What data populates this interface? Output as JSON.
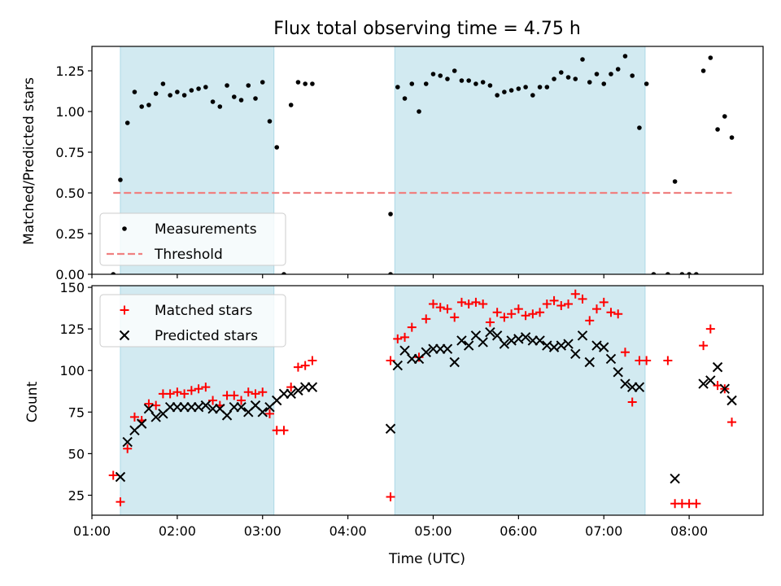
{
  "chart_data": [
    {
      "type": "scatter",
      "title": "Flux total observing time = 4.75 h",
      "xlabel": "",
      "ylabel": "Matched/Predicted stars",
      "x_unit": "UTC",
      "xlim": [
        "01:00",
        "08:52"
      ],
      "ylim": [
        0,
        1.4
      ],
      "yticks": [
        "0.00",
        "0.25",
        "0.50",
        "0.75",
        "1.00",
        "1.25"
      ],
      "legend_position": "lower-left",
      "shaded_intervals": [
        [
          "01:20",
          "03:08"
        ],
        [
          "04:33",
          "07:29"
        ]
      ],
      "shade_color": "#add8e6",
      "series": [
        {
          "name": "Measurements",
          "marker": "dot",
          "color": "#000000",
          "points": [
            [
              "01:15",
              0.0
            ],
            [
              "01:20",
              0.58
            ],
            [
              "01:25",
              0.93
            ],
            [
              "01:30",
              1.12
            ],
            [
              "01:35",
              1.03
            ],
            [
              "01:40",
              1.04
            ],
            [
              "01:45",
              1.11
            ],
            [
              "01:50",
              1.17
            ],
            [
              "01:55",
              1.1
            ],
            [
              "02:00",
              1.12
            ],
            [
              "02:05",
              1.1
            ],
            [
              "02:10",
              1.13
            ],
            [
              "02:15",
              1.14
            ],
            [
              "02:20",
              1.15
            ],
            [
              "02:25",
              1.06
            ],
            [
              "02:30",
              1.03
            ],
            [
              "02:35",
              1.16
            ],
            [
              "02:40",
              1.09
            ],
            [
              "02:45",
              1.07
            ],
            [
              "02:50",
              1.16
            ],
            [
              "02:55",
              1.08
            ],
            [
              "03:00",
              1.18
            ],
            [
              "03:05",
              0.94
            ],
            [
              "03:10",
              0.78
            ],
            [
              "03:15",
              0.0
            ],
            [
              "03:20",
              1.04
            ],
            [
              "03:25",
              1.18
            ],
            [
              "03:30",
              1.17
            ],
            [
              "03:35",
              1.17
            ],
            [
              "04:30",
              0.37
            ],
            [
              "04:30",
              0.0
            ],
            [
              "04:35",
              1.15
            ],
            [
              "04:40",
              1.08
            ],
            [
              "04:45",
              1.17
            ],
            [
              "04:50",
              1.0
            ],
            [
              "04:55",
              1.17
            ],
            [
              "05:00",
              1.23
            ],
            [
              "05:05",
              1.22
            ],
            [
              "05:10",
              1.2
            ],
            [
              "05:15",
              1.25
            ],
            [
              "05:20",
              1.19
            ],
            [
              "05:25",
              1.19
            ],
            [
              "05:30",
              1.17
            ],
            [
              "05:35",
              1.18
            ],
            [
              "05:40",
              1.16
            ],
            [
              "05:45",
              1.1
            ],
            [
              "05:50",
              1.12
            ],
            [
              "05:55",
              1.13
            ],
            [
              "06:00",
              1.14
            ],
            [
              "06:05",
              1.15
            ],
            [
              "06:10",
              1.1
            ],
            [
              "06:15",
              1.15
            ],
            [
              "06:20",
              1.15
            ],
            [
              "06:25",
              1.2
            ],
            [
              "06:30",
              1.24
            ],
            [
              "06:35",
              1.21
            ],
            [
              "06:40",
              1.2
            ],
            [
              "06:45",
              1.32
            ],
            [
              "06:50",
              1.18
            ],
            [
              "06:55",
              1.23
            ],
            [
              "07:00",
              1.17
            ],
            [
              "07:05",
              1.23
            ],
            [
              "07:10",
              1.26
            ],
            [
              "07:15",
              1.34
            ],
            [
              "07:20",
              1.22
            ],
            [
              "07:25",
              0.9
            ],
            [
              "07:30",
              1.17
            ],
            [
              "07:35",
              0.0
            ],
            [
              "07:45",
              0.0
            ],
            [
              "07:50",
              0.57
            ],
            [
              "07:55",
              0.0
            ],
            [
              "08:00",
              0.0
            ],
            [
              "08:05",
              0.0
            ],
            [
              "08:10",
              1.25
            ],
            [
              "08:15",
              1.33
            ],
            [
              "08:20",
              0.89
            ],
            [
              "08:25",
              0.97
            ],
            [
              "08:30",
              0.84
            ]
          ]
        },
        {
          "name": "Threshold",
          "marker": "dashed-line",
          "color": "#f08080",
          "points": [
            [
              "01:15",
              0.5
            ],
            [
              "08:30",
              0.5
            ]
          ]
        }
      ]
    },
    {
      "type": "scatter",
      "title": "",
      "xlabel": "Time (UTC)",
      "ylabel": "Count",
      "xlim": [
        "01:00",
        "08:52"
      ],
      "xticks": [
        "01:00",
        "02:00",
        "03:00",
        "04:00",
        "05:00",
        "06:00",
        "07:00",
        "08:00"
      ],
      "ylim": [
        13,
        151
      ],
      "yticks": [
        "25",
        "50",
        "75",
        "100",
        "125",
        "150"
      ],
      "legend_position": "upper-left",
      "shaded_intervals": [
        [
          "01:20",
          "03:08"
        ],
        [
          "04:33",
          "07:29"
        ]
      ],
      "shade_color": "#add8e6",
      "series": [
        {
          "name": "Matched stars",
          "marker": "plus",
          "color": "#ff0000",
          "points": [
            [
              "01:15",
              37
            ],
            [
              "01:20",
              21
            ],
            [
              "01:25",
              53
            ],
            [
              "01:30",
              72
            ],
            [
              "01:35",
              70
            ],
            [
              "01:40",
              80
            ],
            [
              "01:45",
              79
            ],
            [
              "01:50",
              86
            ],
            [
              "01:55",
              86
            ],
            [
              "02:00",
              87
            ],
            [
              "02:05",
              86
            ],
            [
              "02:10",
              88
            ],
            [
              "02:15",
              89
            ],
            [
              "02:20",
              90
            ],
            [
              "02:25",
              82
            ],
            [
              "02:30",
              79
            ],
            [
              "02:35",
              85
            ],
            [
              "02:40",
              85
            ],
            [
              "02:45",
              82
            ],
            [
              "02:50",
              87
            ],
            [
              "02:55",
              86
            ],
            [
              "03:00",
              87
            ],
            [
              "03:05",
              74
            ],
            [
              "03:10",
              64
            ],
            [
              "03:15",
              64
            ],
            [
              "03:20",
              90
            ],
            [
              "03:25",
              102
            ],
            [
              "03:30",
              103
            ],
            [
              "03:35",
              106
            ],
            [
              "04:30",
              106
            ],
            [
              "04:30",
              24
            ],
            [
              "04:35",
              119
            ],
            [
              "04:40",
              120
            ],
            [
              "04:45",
              126
            ],
            [
              "04:50",
              108
            ],
            [
              "04:55",
              131
            ],
            [
              "05:00",
              140
            ],
            [
              "05:05",
              138
            ],
            [
              "05:10",
              137
            ],
            [
              "05:15",
              132
            ],
            [
              "05:20",
              141
            ],
            [
              "05:25",
              140
            ],
            [
              "05:30",
              141
            ],
            [
              "05:35",
              140
            ],
            [
              "05:40",
              129
            ],
            [
              "05:45",
              135
            ],
            [
              "05:50",
              132
            ],
            [
              "05:55",
              134
            ],
            [
              "06:00",
              137
            ],
            [
              "06:05",
              133
            ],
            [
              "06:10",
              134
            ],
            [
              "06:15",
              135
            ],
            [
              "06:20",
              140
            ],
            [
              "06:25",
              142
            ],
            [
              "06:30",
              139
            ],
            [
              "06:35",
              140
            ],
            [
              "06:40",
              146
            ],
            [
              "06:45",
              143
            ],
            [
              "06:50",
              130
            ],
            [
              "06:55",
              137
            ],
            [
              "07:00",
              141
            ],
            [
              "07:05",
              135
            ],
            [
              "07:10",
              134
            ],
            [
              "07:15",
              111
            ],
            [
              "07:20",
              81
            ],
            [
              "07:25",
              106
            ],
            [
              "07:30",
              106
            ],
            [
              "07:45",
              106
            ],
            [
              "07:50",
              20
            ],
            [
              "07:55",
              20
            ],
            [
              "08:00",
              20
            ],
            [
              "08:05",
              20
            ],
            [
              "08:10",
              115
            ],
            [
              "08:15",
              125
            ],
            [
              "08:20",
              91
            ],
            [
              "08:25",
              89
            ],
            [
              "08:30",
              69
            ]
          ]
        },
        {
          "name": "Predicted stars",
          "marker": "x",
          "color": "#000000",
          "points": [
            [
              "01:20",
              36
            ],
            [
              "01:25",
              57
            ],
            [
              "01:30",
              64
            ],
            [
              "01:35",
              68
            ],
            [
              "01:40",
              77
            ],
            [
              "01:45",
              72
            ],
            [
              "01:50",
              74
            ],
            [
              "01:55",
              78
            ],
            [
              "02:00",
              78
            ],
            [
              "02:05",
              78
            ],
            [
              "02:10",
              78
            ],
            [
              "02:15",
              78
            ],
            [
              "02:20",
              79
            ],
            [
              "02:25",
              77
            ],
            [
              "02:30",
              77
            ],
            [
              "02:35",
              73
            ],
            [
              "02:40",
              78
            ],
            [
              "02:45",
              78
            ],
            [
              "02:50",
              75
            ],
            [
              "02:55",
              79
            ],
            [
              "03:00",
              75
            ],
            [
              "03:05",
              78
            ],
            [
              "03:10",
              82
            ],
            [
              "03:15",
              86
            ],
            [
              "03:20",
              86
            ],
            [
              "03:25",
              88
            ],
            [
              "03:30",
              90
            ],
            [
              "03:35",
              90
            ],
            [
              "04:30",
              65
            ],
            [
              "04:35",
              103
            ],
            [
              "04:40",
              112
            ],
            [
              "04:45",
              107
            ],
            [
              "04:50",
              107
            ],
            [
              "04:55",
              111
            ],
            [
              "05:00",
              113
            ],
            [
              "05:05",
              113
            ],
            [
              "05:10",
              113
            ],
            [
              "05:15",
              105
            ],
            [
              "05:20",
              118
            ],
            [
              "05:25",
              115
            ],
            [
              "05:30",
              121
            ],
            [
              "05:35",
              117
            ],
            [
              "05:40",
              123
            ],
            [
              "05:45",
              121
            ],
            [
              "05:50",
              116
            ],
            [
              "05:55",
              118
            ],
            [
              "06:00",
              119
            ],
            [
              "06:05",
              120
            ],
            [
              "06:10",
              118
            ],
            [
              "06:15",
              118
            ],
            [
              "06:20",
              115
            ],
            [
              "06:25",
              114
            ],
            [
              "06:30",
              115
            ],
            [
              "06:35",
              116
            ],
            [
              "06:40",
              110
            ],
            [
              "06:45",
              121
            ],
            [
              "06:50",
              105
            ],
            [
              "06:55",
              115
            ],
            [
              "07:00",
              114
            ],
            [
              "07:05",
              107
            ],
            [
              "07:10",
              99
            ],
            [
              "07:15",
              92
            ],
            [
              "07:20",
              90
            ],
            [
              "07:25",
              90
            ],
            [
              "07:50",
              35
            ],
            [
              "08:10",
              92
            ],
            [
              "08:15",
              94
            ],
            [
              "08:20",
              102
            ],
            [
              "08:25",
              89
            ],
            [
              "08:30",
              82
            ]
          ]
        }
      ]
    }
  ]
}
